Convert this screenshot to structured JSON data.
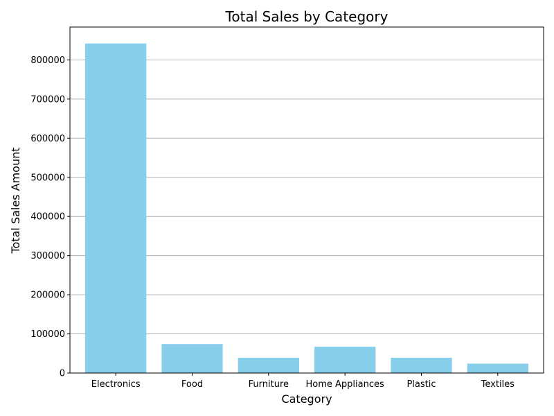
{
  "chart_data": {
    "type": "bar",
    "title": "Total Sales by Category",
    "xlabel": "Category",
    "ylabel": "Total Sales Amount",
    "categories": [
      "Electronics",
      "Food",
      "Furniture",
      "Home Appliances",
      "Plastic",
      "Textiles"
    ],
    "values": [
      842000,
      74000,
      39000,
      67000,
      39000,
      24000
    ],
    "ylim": [
      0,
      884000
    ],
    "yticks": [
      0,
      100000,
      200000,
      300000,
      400000,
      500000,
      600000,
      700000,
      800000
    ],
    "ytick_labels": [
      "0",
      "100000",
      "200000",
      "300000",
      "400000",
      "500000",
      "600000",
      "700000",
      "800000"
    ],
    "grid": "horizontal",
    "bar_color": "#87ceeb",
    "grid_color": "#b0b0b0"
  }
}
